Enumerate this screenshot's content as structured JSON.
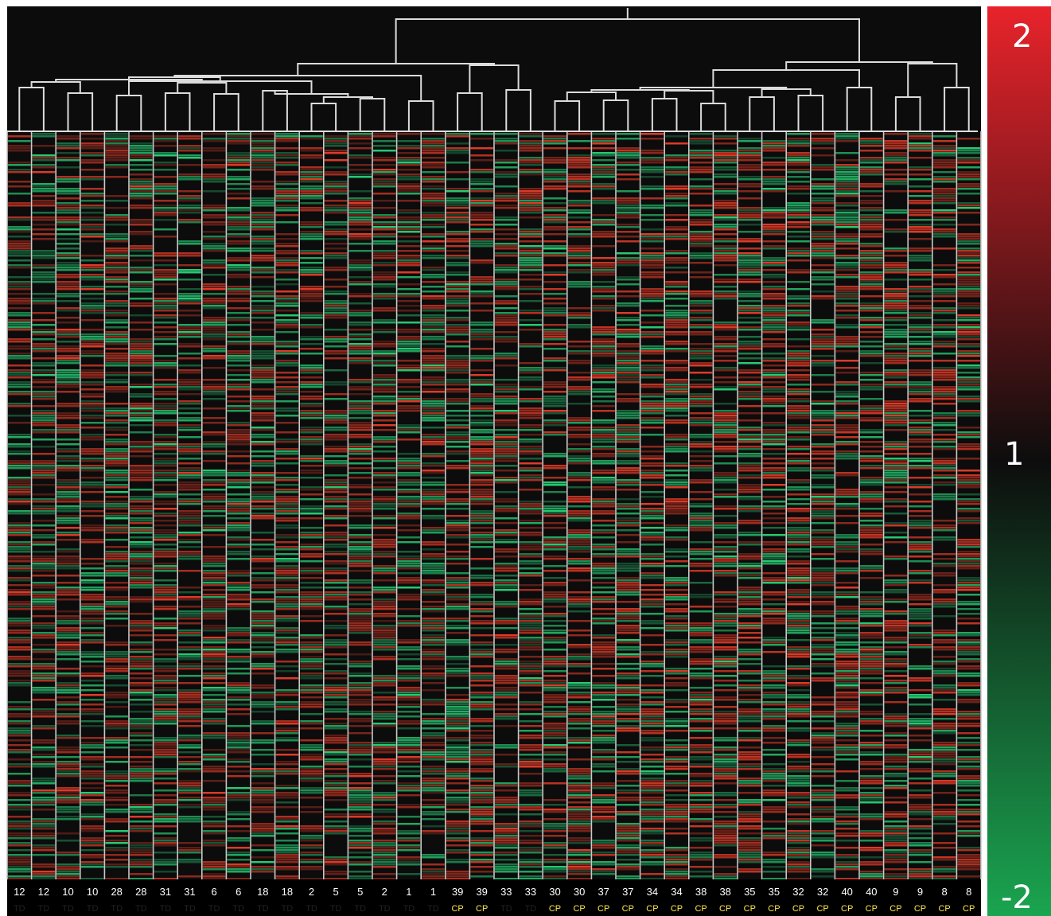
{
  "chart_data": {
    "type": "heatmap",
    "samples": [
      "12",
      "12",
      "10",
      "10",
      "28",
      "28",
      "31",
      "31",
      "6",
      "6",
      "18",
      "18",
      "2",
      "5",
      "5",
      "2",
      "1",
      "1",
      "39",
      "39",
      "33",
      "33",
      "30",
      "30",
      "37",
      "37",
      "34",
      "34",
      "38",
      "38",
      "35",
      "35",
      "32",
      "32",
      "40",
      "40",
      "9",
      "9",
      "8",
      "8"
    ],
    "groups": [
      "TD",
      "TD",
      "TD",
      "TD",
      "TD",
      "TD",
      "TD",
      "TD",
      "TD",
      "TD",
      "TD",
      "TD",
      "TD",
      "TD",
      "TD",
      "TD",
      "TD",
      "TD",
      "CP",
      "CP",
      "TD",
      "TD",
      "CP",
      "CP",
      "CP",
      "CP",
      "CP",
      "CP",
      "CP",
      "CP",
      "CP",
      "CP",
      "CP",
      "CP",
      "CP",
      "CP",
      "CP",
      "CP",
      "CP",
      "CP"
    ],
    "group_colors": {
      "TD": "#f5e400",
      "CP": "#e8312a"
    },
    "colorscale": {
      "labels": [
        "2",
        "1",
        "-2"
      ],
      "max": 2,
      "mid": 1,
      "min": -2,
      "high_color": "#e8232b",
      "mid_color": "#111111",
      "low_color": "#1aa550"
    },
    "grid": true,
    "dendrogram": true,
    "colorbar_position": "right"
  }
}
